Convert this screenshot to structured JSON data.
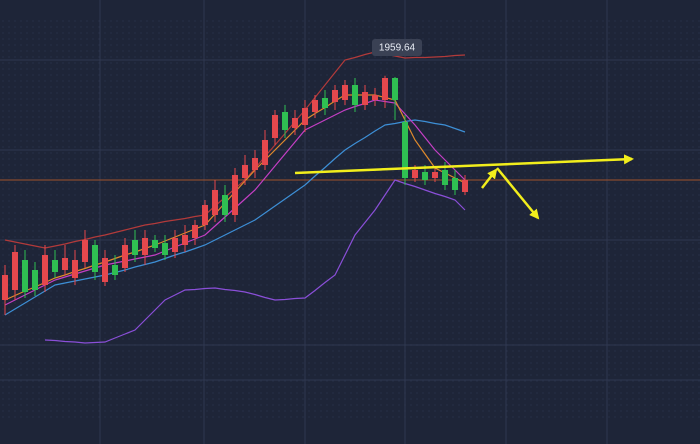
{
  "chart_data": {
    "type": "candlestick",
    "ylim": [
      1886,
      1974.8
    ],
    "up_color": "#e5484d",
    "down_color": "#2fbf52",
    "max_label": "1959.64",
    "price_line": 1938.8,
    "price_line_color": "#a0522d",
    "ohlc": {
      "open": [
        1914.8,
        1916.8,
        1922.8,
        1920.8,
        1917.8,
        1922.8,
        1920.8,
        1919.2,
        1922.4,
        1925.8,
        1918.4,
        1921.8,
        1921.2,
        1926.8,
        1923.8,
        1926.8,
        1926.2,
        1924.4,
        1925.8,
        1927.2,
        1929.8,
        1931.8,
        1935.8,
        1931.8,
        1939.2,
        1940.8,
        1941.8,
        1947.2,
        1952.4,
        1949.2,
        1949.8,
        1952.4,
        1955.2,
        1954.4,
        1954.8,
        1957.8,
        1953.8,
        1954.8,
        1954.8,
        1959.2,
        1950.4,
        1939.2,
        1940.4,
        1939.2,
        1940.8,
        1939.2,
        1936.4
      ],
      "close": [
        1919.8,
        1924.4,
        1916.4,
        1916.8,
        1923.8,
        1920.4,
        1923.2,
        1922.8,
        1926.8,
        1920.4,
        1923.2,
        1919.8,
        1925.8,
        1923.8,
        1927.2,
        1925.2,
        1923.8,
        1927.2,
        1927.8,
        1929.8,
        1933.8,
        1936.8,
        1931.8,
        1939.8,
        1941.8,
        1943.2,
        1946.8,
        1951.8,
        1948.8,
        1951.2,
        1953.2,
        1954.8,
        1953.2,
        1956.8,
        1957.8,
        1953.8,
        1956.4,
        1955.8,
        1959.2,
        1954.8,
        1939.2,
        1940.8,
        1938.8,
        1940.4,
        1937.8,
        1936.8,
        1938.8
      ],
      "high": [
        1921.8,
        1925.8,
        1924.8,
        1922.4,
        1925.8,
        1924.8,
        1925.8,
        1924.8,
        1928.8,
        1926.8,
        1924.8,
        1923.8,
        1927.2,
        1928.8,
        1928.8,
        1927.8,
        1927.8,
        1928.8,
        1929.8,
        1930.8,
        1934.8,
        1938.8,
        1937.8,
        1941.2,
        1943.8,
        1944.8,
        1948.8,
        1952.8,
        1953.8,
        1952.8,
        1954.8,
        1955.8,
        1956.8,
        1957.8,
        1958.8,
        1959.2,
        1957.8,
        1957.2,
        1959.64,
        1959.4,
        1951.8,
        1941.8,
        1941.8,
        1941.2,
        1942.4,
        1940.8,
        1939.8
      ],
      "low": [
        1911.8,
        1914.8,
        1915.2,
        1915.6,
        1916.4,
        1919.2,
        1919.8,
        1917.8,
        1921.2,
        1918.8,
        1917.6,
        1918.8,
        1920.4,
        1922.4,
        1921.8,
        1924.4,
        1922.8,
        1923.2,
        1924.4,
        1925.8,
        1928.8,
        1930.4,
        1930.4,
        1930.4,
        1937.8,
        1939.2,
        1940.8,
        1945.8,
        1947.2,
        1947.8,
        1948.4,
        1951.2,
        1951.8,
        1952.8,
        1953.8,
        1952.4,
        1952.8,
        1953.6,
        1953.2,
        1950.8,
        1937.8,
        1938.4,
        1937.8,
        1938.4,
        1936.8,
        1935.8,
        1935.8
      ]
    },
    "lines": [
      {
        "color": "#b23a3a",
        "values": [
          1926.8,
          1926.4,
          1926.0,
          1925.6,
          1925.2,
          1925.6,
          1926.0,
          1926.5,
          1926.9,
          1927.4,
          1927.8,
          1928.3,
          1928.8,
          1929.3,
          1929.8,
          1930.1,
          1930.5,
          1930.8,
          1931.1,
          1931.5,
          1931.8,
          1933.6,
          1935.3,
          1937.1,
          1938.8,
          1941.1,
          1943.5,
          1945.8,
          1948.1,
          1950.5,
          1952.8,
          1955.3,
          1957.8,
          1960.3,
          1962.8,
          1963.3,
          1963.9,
          1964.4,
          1964.0,
          1963.6,
          1963.2,
          1963.3,
          1963.3,
          1963.4,
          1963.5,
          1963.7,
          1963.8
        ]
      },
      {
        "color": "#8a4fd8",
        "values": [
          null,
          null,
          null,
          null,
          1906.8,
          1906.7,
          1906.5,
          1906.4,
          1906.2,
          1906.3,
          1906.4,
          1907.2,
          1908.0,
          1908.8,
          1910.8,
          1912.8,
          1914.8,
          1915.8,
          1916.8,
          1916.9,
          1917.1,
          1917.2,
          1916.9,
          1916.7,
          1916.4,
          1915.9,
          1915.3,
          1914.8,
          1914.9,
          1915.1,
          1915.2,
          1916.7,
          1918.3,
          1919.8,
          1923.8,
          1927.8,
          1930.3,
          1932.8,
          1935.8,
          1938.8,
          1938.1,
          1937.5,
          1936.8,
          1936.1,
          1935.5,
          1934.8,
          1932.8
        ]
      },
      {
        "color": "#3d8fd6",
        "values": [
          1911.8,
          1913.0,
          1914.2,
          1915.4,
          1916.6,
          1917.8,
          1918.2,
          1918.6,
          1919.0,
          1919.4,
          1919.8,
          1920.3,
          1920.8,
          1921.4,
          1921.9,
          1922.4,
          1923.1,
          1923.8,
          1924.4,
          1925.1,
          1925.8,
          1926.8,
          1927.8,
          1928.8,
          1929.8,
          1930.8,
          1932.2,
          1933.6,
          1935.0,
          1936.4,
          1937.8,
          1939.6,
          1941.3,
          1943.1,
          1944.8,
          1946.1,
          1947.3,
          1948.6,
          1949.8,
          1950.1,
          1950.5,
          1950.8,
          1950.5,
          1950.1,
          1949.8,
          1949.1,
          1948.4
        ]
      },
      {
        "color": "#c43fc4",
        "values": [
          1913.8,
          1914.8,
          1915.8,
          1916.8,
          1917.8,
          1918.8,
          1919.4,
          1920.0,
          1920.6,
          1921.2,
          1921.8,
          1922.2,
          1922.6,
          1923.0,
          1923.4,
          1923.8,
          1924.6,
          1925.4,
          1926.2,
          1927.0,
          1927.8,
          1929.6,
          1931.4,
          1933.2,
          1935.0,
          1936.8,
          1939.2,
          1941.6,
          1944.0,
          1946.4,
          1948.8,
          1949.8,
          1950.8,
          1951.8,
          1952.8,
          1953.5,
          1954.1,
          1954.8,
          1954.5,
          1954.2,
          1952.0,
          1949.8,
          1947.3,
          1944.8,
          1942.8,
          1940.8,
          1938.8
        ]
      },
      {
        "color": "#e08a2c",
        "values": [
          1914.8,
          1915.7,
          1916.6,
          1917.4,
          1918.3,
          1919.2,
          1919.8,
          1920.5,
          1921.1,
          1921.8,
          1922.4,
          1923.1,
          1923.8,
          1924.4,
          1925.1,
          1925.8,
          1926.6,
          1927.4,
          1928.2,
          1929.0,
          1929.8,
          1932.0,
          1934.2,
          1936.4,
          1938.6,
          1940.8,
          1942.8,
          1944.8,
          1946.8,
          1948.8,
          1950.8,
          1952.1,
          1953.3,
          1954.6,
          1955.8,
          1955.8,
          1955.8,
          1955.8,
          1955.3,
          1954.8,
          1950.8,
          1946.8,
          1944.0,
          1941.2,
          1940.2,
          1939.2,
          1938.2
        ]
      }
    ]
  }
}
